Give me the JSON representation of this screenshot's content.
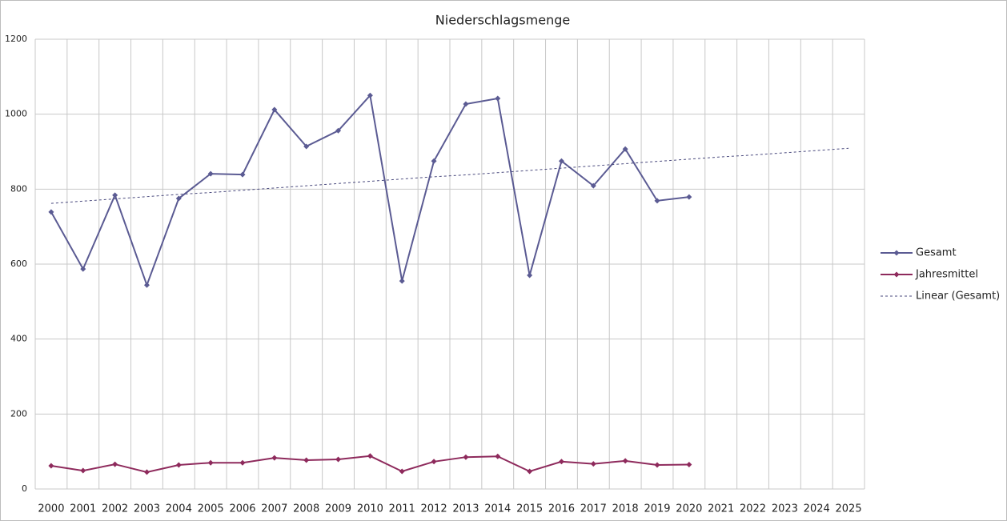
{
  "chart_data": {
    "type": "line",
    "title": "Niederschlagsmenge",
    "categories": [
      "2000",
      "2001",
      "2002",
      "2003",
      "2004",
      "2005",
      "2006",
      "2007",
      "2008",
      "2009",
      "2010",
      "2011",
      "2012",
      "2013",
      "2014",
      "2015",
      "2016",
      "2017",
      "2018",
      "2019",
      "2020",
      "2021",
      "2022",
      "2023",
      "2024",
      "2025"
    ],
    "series": [
      {
        "name": "Gesamt",
        "color": "#5b5b93",
        "marker": "diamond",
        "values": [
          739,
          587,
          784,
          544,
          775,
          841,
          839,
          1012,
          914,
          956,
          1050,
          555,
          875,
          1027,
          1042,
          570,
          875,
          809,
          907,
          769,
          779,
          null,
          null,
          null,
          null,
          null
        ]
      },
      {
        "name": "Jahresmittel",
        "color": "#8e2a5c",
        "marker": "diamond",
        "values": [
          62,
          49,
          66,
          45,
          64,
          70,
          70,
          83,
          77,
          79,
          88,
          47,
          73,
          85,
          87,
          47,
          73,
          67,
          75,
          64,
          65,
          null,
          null,
          null,
          null,
          null
        ]
      },
      {
        "name": "Linear (Gesamt)",
        "color": "#4a4a7e",
        "dashed": true,
        "values": [
          762,
          768,
          774,
          780,
          786,
          791,
          797,
          803,
          809,
          815,
          821,
          827,
          833,
          838,
          844,
          850,
          856,
          862,
          868,
          874,
          880,
          886,
          891,
          897,
          903,
          909
        ]
      }
    ],
    "ylim": [
      0,
      1200
    ],
    "yticks": [
      0,
      200,
      400,
      600,
      800,
      1000,
      1200
    ],
    "grid": true,
    "legend": "right"
  }
}
